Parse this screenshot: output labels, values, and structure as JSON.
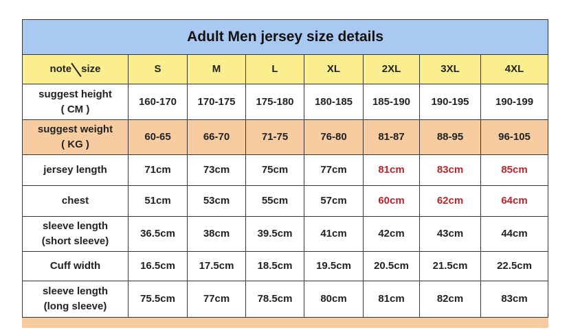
{
  "title": "Adult Men jersey size details",
  "header": {
    "corner_left": "note",
    "corner_right": "size",
    "sizes": [
      "S",
      "M",
      "L",
      "XL",
      "2XL",
      "3XL",
      "4XL"
    ]
  },
  "rows": [
    {
      "label": [
        "suggest height",
        "( CM )"
      ],
      "values": [
        "160-170",
        "170-175",
        "175-180",
        "180-185",
        "185-190",
        "190-195",
        "190-199"
      ],
      "highlight": "#f6cca0",
      "highlighted": false
    },
    {
      "label": [
        "suggest weight",
        "( KG )"
      ],
      "values": [
        "60-65",
        "66-70",
        "71-75",
        "76-80",
        "81-87",
        "88-95",
        "96-105"
      ],
      "highlighted": true
    },
    {
      "label": [
        "jersey length"
      ],
      "values": [
        "71cm",
        "73cm",
        "75cm",
        "77cm",
        "81cm",
        "83cm",
        "85cm"
      ],
      "red_from": "2XL"
    },
    {
      "label": [
        "chest"
      ],
      "values": [
        "51cm",
        "53cm",
        "55cm",
        "57cm",
        "60cm",
        "62cm",
        "64cm"
      ],
      "red_from": "2XL"
    },
    {
      "label": [
        "sleeve length",
        "(short sleeve)"
      ],
      "values": [
        "36.5cm",
        "38cm",
        "39.5cm",
        "41cm",
        "42cm",
        "43cm",
        "44cm"
      ]
    },
    {
      "label": [
        "Cuff width"
      ],
      "values": [
        "16.5cm",
        "17.5cm",
        "18.5cm",
        "19.5cm",
        "20.5cm",
        "21.5cm",
        "22.5cm"
      ]
    },
    {
      "label": [
        "sleeve length",
        "(long sleeve)"
      ],
      "values": [
        "75.5cm",
        "77cm",
        "78.5cm",
        "80cm",
        "81cm",
        "82cm",
        "83cm"
      ]
    }
  ],
  "colors": {
    "title_bg": "#a9c9f2",
    "header_bg": "#fbee8e",
    "weight_row_bg": "#f6cca0",
    "red_text": "#b3262a"
  }
}
